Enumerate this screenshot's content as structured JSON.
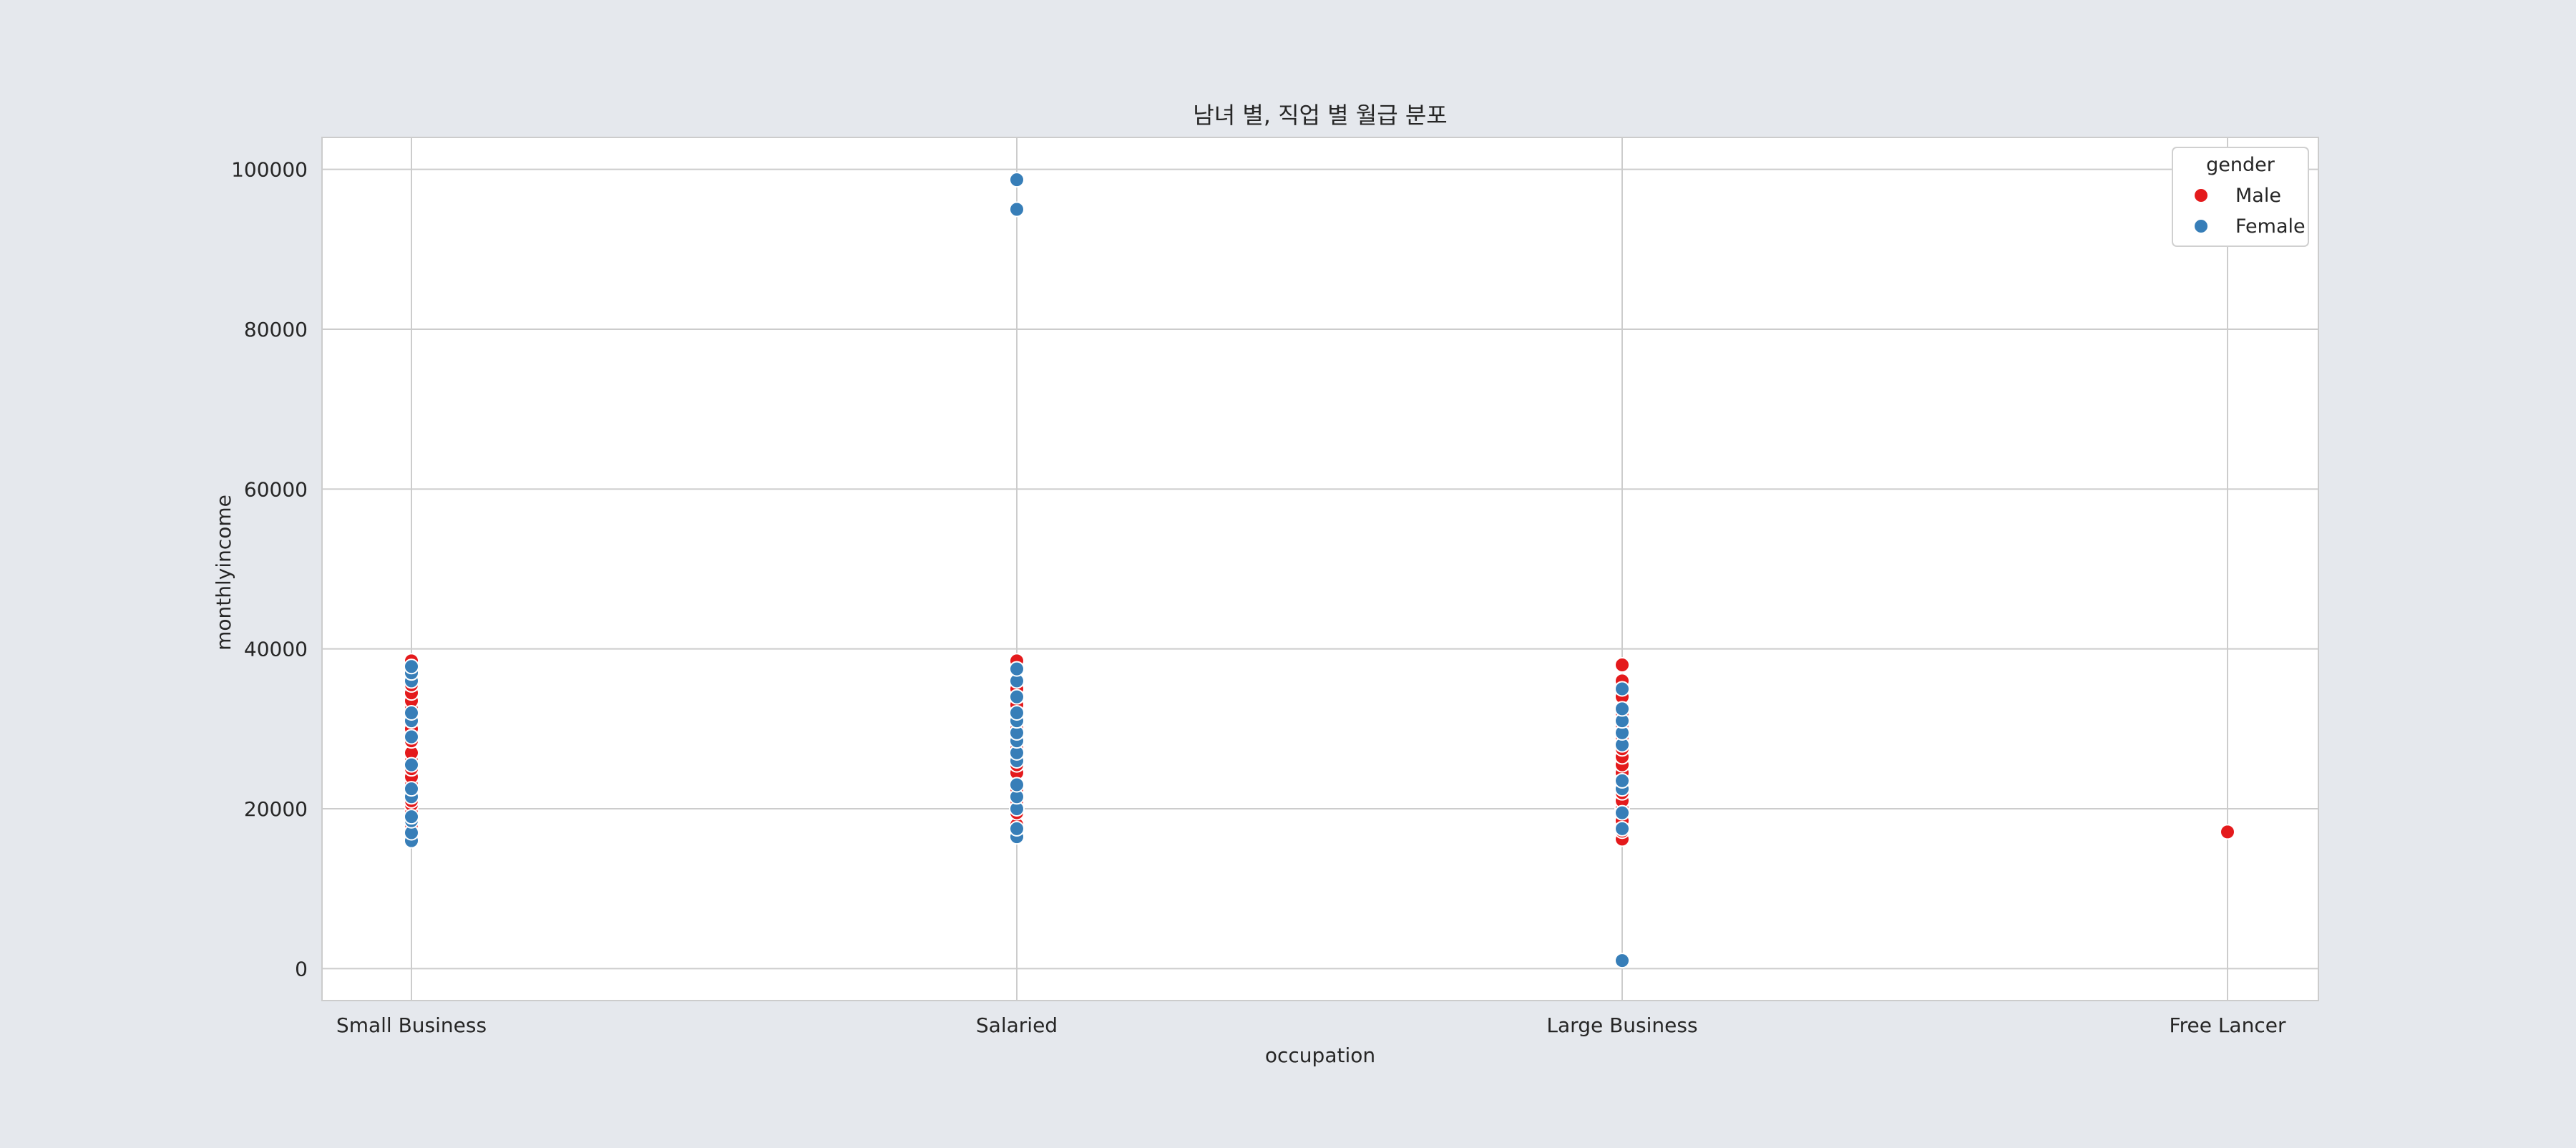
{
  "chart_data": {
    "type": "scatter",
    "title": "남녀 별, 직업 별 월급 분포",
    "xlabel": "occupation",
    "ylabel": "monthlyincome",
    "categories": [
      "Small Business",
      "Salaried",
      "Large Business",
      "Free Lancer"
    ],
    "ylim": [
      -4000,
      104000
    ],
    "yticks": [
      0,
      20000,
      40000,
      60000,
      80000,
      100000
    ],
    "grid": true,
    "legend": {
      "title": "gender",
      "placement": "top-right"
    },
    "colors": {
      "Male": "#e41a1c",
      "Female": "#377eb8",
      "grid": "#cccccc",
      "background": "#ffffff",
      "page": "#e5e8ed"
    },
    "series": [
      {
        "name": "Male",
        "points": [
          {
            "x": "Small Business",
            "y": 16500
          },
          {
            "x": "Small Business",
            "y": 17200
          },
          {
            "x": "Small Business",
            "y": 18000
          },
          {
            "x": "Small Business",
            "y": 19500
          },
          {
            "x": "Small Business",
            "y": 20500
          },
          {
            "x": "Small Business",
            "y": 21000
          },
          {
            "x": "Small Business",
            "y": 22000
          },
          {
            "x": "Small Business",
            "y": 23000
          },
          {
            "x": "Small Business",
            "y": 24000
          },
          {
            "x": "Small Business",
            "y": 25000
          },
          {
            "x": "Small Business",
            "y": 26000
          },
          {
            "x": "Small Business",
            "y": 27000
          },
          {
            "x": "Small Business",
            "y": 28500
          },
          {
            "x": "Small Business",
            "y": 30000
          },
          {
            "x": "Small Business",
            "y": 31000
          },
          {
            "x": "Small Business",
            "y": 32500
          },
          {
            "x": "Small Business",
            "y": 33500
          },
          {
            "x": "Small Business",
            "y": 34500
          },
          {
            "x": "Small Business",
            "y": 35500
          },
          {
            "x": "Small Business",
            "y": 36500
          },
          {
            "x": "Small Business",
            "y": 37500
          },
          {
            "x": "Small Business",
            "y": 38500
          },
          {
            "x": "Salaried",
            "y": 17000
          },
          {
            "x": "Salaried",
            "y": 18000
          },
          {
            "x": "Salaried",
            "y": 19500
          },
          {
            "x": "Salaried",
            "y": 21000
          },
          {
            "x": "Salaried",
            "y": 22500
          },
          {
            "x": "Salaried",
            "y": 24500
          },
          {
            "x": "Salaried",
            "y": 25500
          },
          {
            "x": "Salaried",
            "y": 27500
          },
          {
            "x": "Salaried",
            "y": 30000
          },
          {
            "x": "Salaried",
            "y": 33000
          },
          {
            "x": "Salaried",
            "y": 35000
          },
          {
            "x": "Salaried",
            "y": 38500
          },
          {
            "x": "Large Business",
            "y": 16200
          },
          {
            "x": "Large Business",
            "y": 17200
          },
          {
            "x": "Large Business",
            "y": 18500
          },
          {
            "x": "Large Business",
            "y": 20000
          },
          {
            "x": "Large Business",
            "y": 21000
          },
          {
            "x": "Large Business",
            "y": 22000
          },
          {
            "x": "Large Business",
            "y": 23000
          },
          {
            "x": "Large Business",
            "y": 24500
          },
          {
            "x": "Large Business",
            "y": 25500
          },
          {
            "x": "Large Business",
            "y": 26500
          },
          {
            "x": "Large Business",
            "y": 27500
          },
          {
            "x": "Large Business",
            "y": 29000
          },
          {
            "x": "Large Business",
            "y": 30500
          },
          {
            "x": "Large Business",
            "y": 32000
          },
          {
            "x": "Large Business",
            "y": 34000
          },
          {
            "x": "Large Business",
            "y": 36000
          },
          {
            "x": "Large Business",
            "y": 38000
          },
          {
            "x": "Free Lancer",
            "y": 17100
          }
        ]
      },
      {
        "name": "Female",
        "points": [
          {
            "x": "Small Business",
            "y": 16000
          },
          {
            "x": "Small Business",
            "y": 17000
          },
          {
            "x": "Small Business",
            "y": 18500
          },
          {
            "x": "Small Business",
            "y": 19000
          },
          {
            "x": "Small Business",
            "y": 21500
          },
          {
            "x": "Small Business",
            "y": 22500
          },
          {
            "x": "Small Business",
            "y": 25500
          },
          {
            "x": "Small Business",
            "y": 29000
          },
          {
            "x": "Small Business",
            "y": 31000
          },
          {
            "x": "Small Business",
            "y": 32000
          },
          {
            "x": "Small Business",
            "y": 36000
          },
          {
            "x": "Small Business",
            "y": 37000
          },
          {
            "x": "Small Business",
            "y": 37800
          },
          {
            "x": "Salaried",
            "y": 16500
          },
          {
            "x": "Salaried",
            "y": 17500
          },
          {
            "x": "Salaried",
            "y": 20000
          },
          {
            "x": "Salaried",
            "y": 21500
          },
          {
            "x": "Salaried",
            "y": 23000
          },
          {
            "x": "Salaried",
            "y": 26000
          },
          {
            "x": "Salaried",
            "y": 27000
          },
          {
            "x": "Salaried",
            "y": 28500
          },
          {
            "x": "Salaried",
            "y": 29500
          },
          {
            "x": "Salaried",
            "y": 31000
          },
          {
            "x": "Salaried",
            "y": 32000
          },
          {
            "x": "Salaried",
            "y": 34000
          },
          {
            "x": "Salaried",
            "y": 36000
          },
          {
            "x": "Salaried",
            "y": 37500
          },
          {
            "x": "Salaried",
            "y": 95000
          },
          {
            "x": "Salaried",
            "y": 98700
          },
          {
            "x": "Large Business",
            "y": 1000
          },
          {
            "x": "Large Business",
            "y": 17500
          },
          {
            "x": "Large Business",
            "y": 19500
          },
          {
            "x": "Large Business",
            "y": 22500
          },
          {
            "x": "Large Business",
            "y": 23500
          },
          {
            "x": "Large Business",
            "y": 28000
          },
          {
            "x": "Large Business",
            "y": 29500
          },
          {
            "x": "Large Business",
            "y": 31000
          },
          {
            "x": "Large Business",
            "y": 32500
          },
          {
            "x": "Large Business",
            "y": 35000
          }
        ]
      }
    ]
  }
}
